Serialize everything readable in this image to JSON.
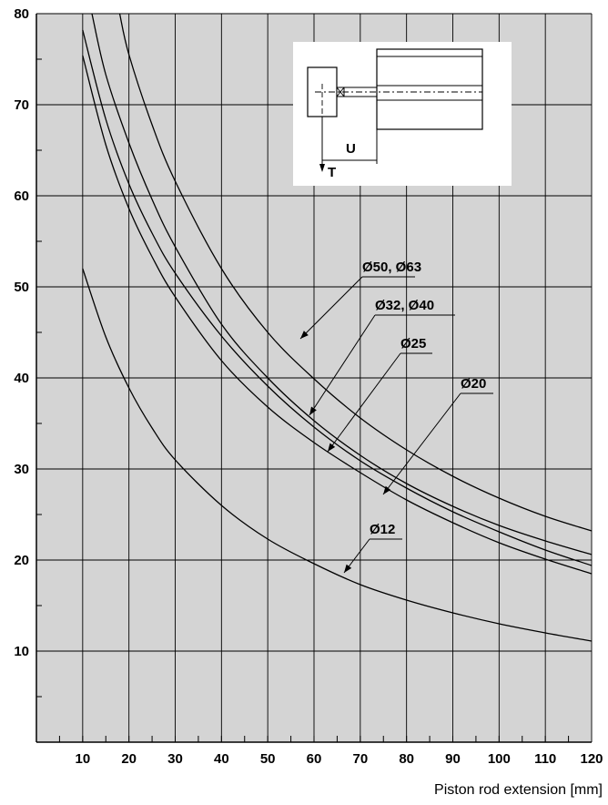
{
  "chart_data": {
    "type": "line",
    "title": "",
    "xlabel": "Piston rod extension [mm]",
    "ylabel": "",
    "xlim": [
      0,
      120
    ],
    "ylim": [
      0,
      80
    ],
    "x_ticks": [
      10,
      20,
      30,
      40,
      50,
      60,
      70,
      80,
      90,
      100,
      110,
      120
    ],
    "y_ticks": [
      10,
      20,
      30,
      40,
      50,
      60,
      70,
      80
    ],
    "grid": true,
    "legend": "none",
    "series": [
      {
        "name": "Ø50, Ø63",
        "x": [
          18,
          20,
          25,
          30,
          40,
          50,
          60,
          70,
          80,
          90,
          100,
          110,
          120
        ],
        "values": [
          80,
          75.5,
          67.8,
          61.6,
          52,
          45,
          39.9,
          35.6,
          32.1,
          29.2,
          26.8,
          24.8,
          23.2
        ]
      },
      {
        "name": "Ø32, Ø40",
        "x": [
          12,
          15,
          20,
          25,
          30,
          40,
          50,
          60,
          70,
          80,
          90,
          100,
          110,
          120
        ],
        "values": [
          80,
          73.3,
          65.8,
          59.6,
          54.4,
          45.9,
          40,
          35.3,
          31.5,
          28.4,
          25.9,
          23.8,
          22.1,
          20.6
        ]
      },
      {
        "name": "Ø25",
        "x": [
          10,
          15,
          20,
          25,
          30,
          40,
          50,
          60,
          70,
          80,
          90,
          100,
          110,
          120
        ],
        "values": [
          78.2,
          68.4,
          61.3,
          55.9,
          51.5,
          44.6,
          39.1,
          34.6,
          30.9,
          27.9,
          25.3,
          23.1,
          21.1,
          19.4
        ]
      },
      {
        "name": "Ø20",
        "x": [
          10,
          15,
          20,
          25,
          30,
          40,
          50,
          60,
          70,
          80,
          90,
          100,
          110,
          120
        ],
        "values": [
          75.4,
          65.6,
          58.6,
          53.3,
          48.9,
          41.9,
          36.8,
          32.9,
          29.6,
          26.6,
          24.1,
          21.9,
          20.1,
          18.5
        ]
      },
      {
        "name": "Ø12",
        "x": [
          10,
          15,
          20,
          25,
          30,
          40,
          50,
          60,
          70,
          80,
          90,
          100,
          110,
          120
        ],
        "values": [
          52,
          44.5,
          38.9,
          34.5,
          31,
          26,
          22.3,
          19.6,
          17.3,
          15.6,
          14.2,
          13,
          12,
          11.1
        ]
      }
    ],
    "inset": {
      "label_u": "U",
      "label_t": "T"
    }
  }
}
